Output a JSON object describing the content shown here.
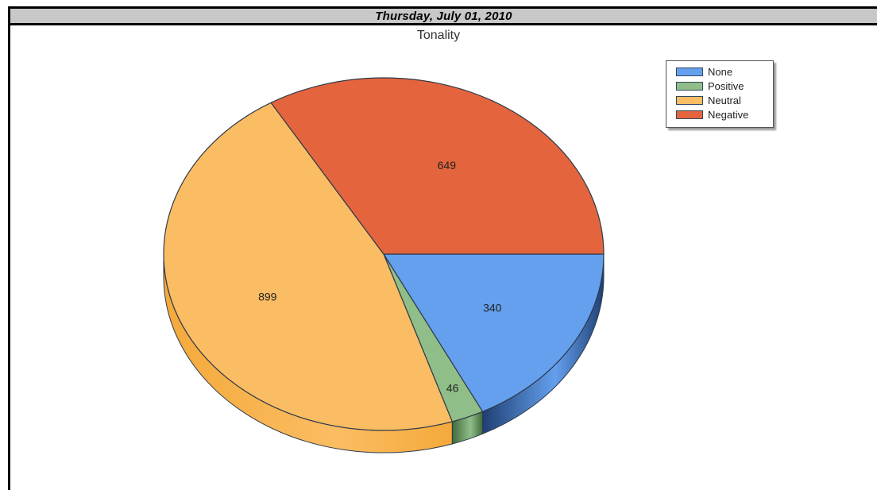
{
  "header": {
    "date": "Thursday, July 01, 2010"
  },
  "chart_data": {
    "type": "pie",
    "title": "Tonality",
    "categories": [
      "None",
      "Positive",
      "Neutral",
      "Negative"
    ],
    "values": [
      340,
      46,
      899,
      649
    ],
    "colors": [
      "#64a0ee",
      "#90be88",
      "#fbbd63",
      "#e4653d"
    ],
    "side_colors": [
      "#1f3f73",
      "#3f6a3c",
      "#f4a93a",
      "#8e2f14"
    ],
    "style": "3d-tilted",
    "legend_position": "top-right",
    "data_labels": true
  }
}
